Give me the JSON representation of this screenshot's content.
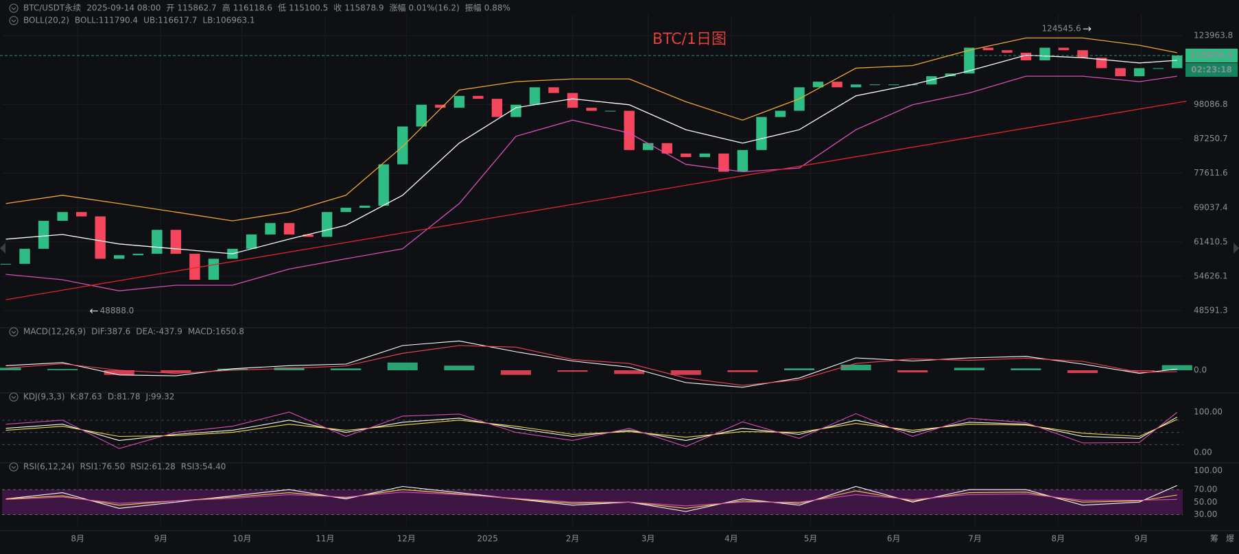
{
  "header": {
    "items": [
      {
        "text": "BTC/USDT永续",
        "color": "#9aa0a6"
      },
      {
        "text": "2025-09-14 08:00",
        "color": "#9aa0a6"
      },
      {
        "text": "开",
        "color": "#9aa0a6"
      },
      {
        "text": "115862.7",
        "color": "#2ebd85"
      },
      {
        "text": "高",
        "color": "#9aa0a6"
      },
      {
        "text": "116118.6",
        "color": "#2ebd85"
      },
      {
        "text": "低",
        "color": "#9aa0a6"
      },
      {
        "text": "115100.5",
        "color": "#2ebd85"
      },
      {
        "text": "收",
        "color": "#9aa0a6"
      },
      {
        "text": "115878.9",
        "color": "#2ebd85"
      },
      {
        "text": "涨幅",
        "color": "#9aa0a6"
      },
      {
        "text": "0.01%(16.2)",
        "color": "#2ebd85"
      },
      {
        "text": "振幅",
        "color": "#9aa0a6"
      },
      {
        "text": "0.88%",
        "color": "#2ebd85"
      }
    ]
  },
  "chart_data": [
    {
      "type": "candlestick",
      "title": "BTC/1日图",
      "log_scale": true,
      "grid": true,
      "xlim": [
        -0.2,
        62.3
      ],
      "ylim": [
        47050,
        133300
      ],
      "yticks": [
        {
          "value": 123963.8,
          "label": "123963.8"
        },
        {
          "value": 98086.8,
          "label": "98086.8"
        },
        {
          "value": 87250.7,
          "label": "87250.7"
        },
        {
          "value": 77611.6,
          "label": "77611.6"
        },
        {
          "value": 69037.4,
          "label": "69037.4"
        },
        {
          "value": 61410.5,
          "label": "61410.5"
        },
        {
          "value": 54626.1,
          "label": "54626.1"
        },
        {
          "value": 48591.3,
          "label": "48591.3"
        }
      ],
      "legend": [
        {
          "text": "BOLL(20,2)",
          "color": "#9aa0a6"
        },
        {
          "text": "BOLL:111790.4",
          "color": "#ffffff"
        },
        {
          "text": "UB:116617.7",
          "color": "#f0a830"
        },
        {
          "text": "LB:106963.1",
          "color": "#d84fb8"
        }
      ],
      "up_color": "#2ebd85",
      "down_color": "#f6465d",
      "x": [
        0,
        1,
        2,
        3,
        4,
        5,
        6,
        7,
        8,
        9,
        10,
        11,
        12,
        13,
        14,
        15,
        16,
        17,
        18,
        19,
        20,
        21,
        22,
        23,
        24,
        25,
        26,
        27,
        28,
        29,
        30,
        31,
        32,
        33,
        34,
        35,
        36,
        37,
        38,
        39,
        40,
        41,
        42,
        43,
        44,
        45,
        46,
        47,
        48,
        49,
        50,
        51,
        52,
        53,
        54,
        55,
        56,
        57,
        58,
        59,
        60,
        61,
        62
      ],
      "closes": [
        57000,
        60000,
        66000,
        68000,
        67000,
        58000,
        58700,
        59000,
        64000,
        59000,
        54000,
        58000,
        60000,
        63000,
        65500,
        63000,
        62500,
        68000,
        69000,
        69500,
        80000,
        91000,
        98000,
        97000,
        101000,
        100000,
        94000,
        98000,
        104000,
        102000,
        97000,
        96000,
        96000,
        84000,
        86000,
        83000,
        82000,
        83000,
        78000,
        84000,
        94000,
        96000,
        104000,
        106000,
        104000,
        105000,
        105000,
        105000,
        105000,
        108000,
        109000,
        119000,
        118000,
        117000,
        114000,
        119000,
        118000,
        115000,
        111000,
        108000,
        111000,
        111000,
        115878.9
      ],
      "boll": {
        "x": [
          0,
          3,
          6,
          9,
          12,
          15,
          18,
          21,
          24,
          27,
          30,
          33,
          36,
          39,
          42,
          45,
          48,
          51,
          54,
          57,
          60,
          62
        ],
        "series": [
          {
            "color": "#f0a830",
            "values": [
              70000,
              72000,
              70000,
              68000,
              66000,
              68000,
              72000,
              85000,
              103000,
              106000,
              107000,
              107000,
              99000,
              93000,
              100000,
              111000,
              112000,
              118000,
              123000,
              123000,
              120000,
              117000
            ]
          },
          {
            "color": "#ffffff",
            "values": [
              62000,
              63000,
              61000,
              60000,
              59000,
              62000,
              65000,
              72000,
              86000,
              97000,
              100000,
              98000,
              90000,
              86000,
              90000,
              101000,
              105000,
              110000,
              116000,
              115000,
              113000,
              114000
            ]
          },
          {
            "color": "#d84fb8",
            "values": [
              55000,
              54000,
              52000,
              53000,
              53000,
              56000,
              58000,
              60000,
              70000,
              88000,
              93000,
              89000,
              80000,
              78000,
              79000,
              90000,
              98000,
              102000,
              108000,
              108000,
              106000,
              108000
            ]
          }
        ]
      },
      "trendline": {
        "color": "#e0262e",
        "x": [
          0,
          62.5
        ],
        "values": [
          50450,
          99200
        ]
      },
      "high": {
        "x": 57.5,
        "value": 124545.6
      },
      "low": {
        "x": 4.4,
        "value": 48888,
        "label": "48888.0"
      },
      "last_price": 115878.9,
      "countdown": "02:23:18"
    },
    {
      "type": "macd",
      "xlim": [
        -0.2,
        62.3
      ],
      "ylim": [
        -6000,
        10000
      ],
      "yticks": [
        {
          "value": 0,
          "label": "0.0"
        }
      ],
      "legend": [
        {
          "text": "MACD(12,26,9)",
          "color": "#9aa0a6"
        },
        {
          "text": "DIF:387.6",
          "color": "#ffffff"
        },
        {
          "text": "DEA:-437.9",
          "color": "#f6465d"
        },
        {
          "text": "MACD:1650.8",
          "color": "#2ebd85"
        }
      ],
      "x": [
        0,
        3,
        6,
        9,
        12,
        15,
        18,
        21,
        24,
        27,
        30,
        33,
        36,
        39,
        42,
        45,
        48,
        51,
        54,
        57,
        60,
        62
      ],
      "histogram": {
        "up_color": "#2ebd85",
        "down_color": "#f6465d",
        "values": [
          800,
          400,
          -1500,
          -800,
          500,
          900,
          600,
          2500,
          1500,
          -1500,
          -500,
          -1200,
          -1500,
          -600,
          600,
          1800,
          -700,
          800,
          600,
          -900,
          -300,
          1650.8
        ]
      },
      "series": [
        {
          "color": "#ffffff",
          "values": [
            1500,
            2500,
            -1500,
            -1800,
            500,
            1500,
            2000,
            8000,
            9500,
            6000,
            3000,
            1000,
            -4000,
            -5500,
            -2500,
            4000,
            3000,
            4000,
            4500,
            2000,
            -1000,
            387.6
          ]
        },
        {
          "color": "#f6465d",
          "values": [
            700,
            2100,
            0,
            -1000,
            0,
            600,
            1400,
            5500,
            8000,
            7500,
            3500,
            2200,
            -2500,
            -4900,
            -3100,
            2200,
            3700,
            3200,
            3900,
            2900,
            -700,
            -437.9
          ]
        }
      ]
    },
    {
      "type": "line",
      "xlim": [
        -0.2,
        62.3
      ],
      "ylim": [
        -20,
        127
      ],
      "yticks": [
        {
          "value": 100,
          "label": "100.00"
        },
        {
          "value": 0,
          "label": "0.00"
        }
      ],
      "levels": [
        80,
        50,
        20
      ],
      "legend": [
        {
          "text": "KDJ(9,3,3)",
          "color": "#9aa0a6"
        },
        {
          "text": "K:87.63",
          "color": "#ffffff"
        },
        {
          "text": "D:81.78",
          "color": "#f5e04a"
        },
        {
          "text": "J:99.32",
          "color": "#d84fb8"
        }
      ],
      "x": [
        0,
        3,
        6,
        9,
        12,
        15,
        18,
        21,
        24,
        27,
        30,
        33,
        36,
        39,
        42,
        45,
        48,
        51,
        54,
        57,
        60,
        62
      ],
      "series": [
        {
          "color": "#ffffff",
          "values": [
            60,
            70,
            30,
            45,
            55,
            80,
            50,
            75,
            85,
            60,
            40,
            55,
            30,
            60,
            45,
            80,
            50,
            75,
            70,
            40,
            35,
            87.63
          ]
        },
        {
          "color": "#f5e04a",
          "values": [
            55,
            65,
            40,
            42,
            50,
            70,
            55,
            68,
            80,
            65,
            45,
            52,
            38,
            52,
            50,
            72,
            55,
            70,
            68,
            48,
            40,
            81.78
          ]
        },
        {
          "color": "#d84fb8",
          "values": [
            70,
            80,
            10,
            50,
            65,
            100,
            40,
            90,
            95,
            50,
            30,
            60,
            15,
            76,
            35,
            96,
            40,
            85,
            74,
            24,
            25,
            99.32
          ]
        }
      ]
    },
    {
      "type": "line",
      "xlim": [
        -0.2,
        62.3
      ],
      "ylim": [
        13,
        103
      ],
      "yticks": [
        {
          "value": 100,
          "label": "100.00"
        },
        {
          "value": 70,
          "label": "70.00"
        },
        {
          "value": 50,
          "label": "50.00"
        },
        {
          "value": 30,
          "label": "30.00"
        }
      ],
      "band": [
        30,
        70
      ],
      "band_color": "#4a1850",
      "legend": [
        {
          "text": "RSI(6,12,24)",
          "color": "#9aa0a6"
        },
        {
          "text": "RSI1:76.50",
          "color": "#ffffff"
        },
        {
          "text": "RSI2:61.28",
          "color": "#f5e04a"
        },
        {
          "text": "RSI3:54.40",
          "color": "#d84fb8"
        }
      ],
      "x": [
        0,
        3,
        6,
        9,
        12,
        15,
        18,
        21,
        24,
        27,
        30,
        33,
        36,
        39,
        42,
        45,
        48,
        51,
        54,
        57,
        60,
        62
      ],
      "series": [
        {
          "color": "#ffffff",
          "values": [
            55,
            65,
            40,
            50,
            60,
            70,
            55,
            75,
            65,
            55,
            45,
            50,
            35,
            55,
            45,
            75,
            50,
            70,
            70,
            45,
            50,
            76.5
          ]
        },
        {
          "color": "#f5e04a",
          "values": [
            55,
            60,
            45,
            52,
            58,
            65,
            57,
            70,
            63,
            55,
            48,
            50,
            40,
            52,
            48,
            68,
            52,
            65,
            66,
            50,
            52,
            61.28
          ]
        },
        {
          "color": "#d84fb8",
          "values": [
            54,
            58,
            48,
            52,
            56,
            62,
            58,
            66,
            62,
            56,
            50,
            50,
            44,
            50,
            50,
            62,
            54,
            62,
            63,
            53,
            53,
            54.4
          ]
        }
      ],
      "xticks": [
        {
          "value": 3.8,
          "label": "8月"
        },
        {
          "value": 8.2,
          "label": "9月"
        },
        {
          "value": 12.5,
          "label": "10月"
        },
        {
          "value": 16.9,
          "label": "11月"
        },
        {
          "value": 21.2,
          "label": "12月"
        },
        {
          "value": 25.5,
          "label": "2025"
        },
        {
          "value": 30,
          "label": "2月"
        },
        {
          "value": 34,
          "label": "3月"
        },
        {
          "value": 38.4,
          "label": "4月"
        },
        {
          "value": 42.6,
          "label": "5月"
        },
        {
          "value": 47,
          "label": "6月"
        },
        {
          "value": 51.3,
          "label": "7月"
        },
        {
          "value": 55.7,
          "label": "8月"
        },
        {
          "value": 60.1,
          "label": "9月"
        }
      ],
      "axis_side_labels": [
        "筹",
        "爆"
      ]
    }
  ]
}
